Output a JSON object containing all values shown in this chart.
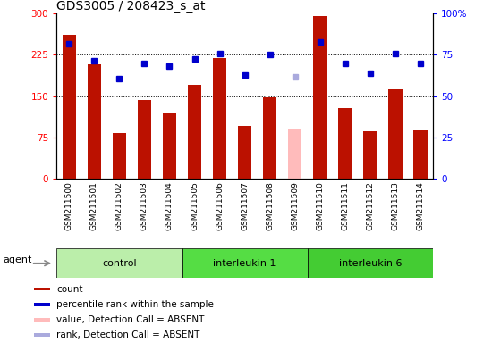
{
  "title": "GDS3005 / 208423_s_at",
  "samples": [
    "GSM211500",
    "GSM211501",
    "GSM211502",
    "GSM211503",
    "GSM211504",
    "GSM211505",
    "GSM211506",
    "GSM211507",
    "GSM211508",
    "GSM211509",
    "GSM211510",
    "GSM211511",
    "GSM211512",
    "GSM211513",
    "GSM211514"
  ],
  "count_values": [
    262,
    208,
    83,
    143,
    118,
    170,
    220,
    95,
    147,
    null,
    295,
    128,
    85,
    162,
    88
  ],
  "count_absent": [
    null,
    null,
    null,
    null,
    null,
    null,
    null,
    null,
    null,
    90,
    null,
    null,
    null,
    null,
    null
  ],
  "rank_values": [
    245,
    215,
    182,
    210,
    205,
    218,
    228,
    188,
    225,
    null,
    248,
    210,
    192,
    228,
    210
  ],
  "rank_absent": [
    null,
    null,
    null,
    null,
    null,
    null,
    null,
    null,
    null,
    185,
    null,
    null,
    null,
    null,
    null
  ],
  "ylim_left": [
    0,
    300
  ],
  "ylim_right": [
    0,
    100
  ],
  "yticks_left": [
    0,
    75,
    150,
    225,
    300
  ],
  "yticks_right": [
    0,
    25,
    50,
    75,
    100
  ],
  "bar_color": "#bb1100",
  "bar_absent_color": "#ffbbbb",
  "rank_color": "#0000cc",
  "rank_absent_color": "#aaaadd",
  "group_defs": [
    {
      "start": 0,
      "end": 5,
      "label": "control",
      "color": "#bbeeaa"
    },
    {
      "start": 5,
      "end": 10,
      "label": "interleukin 1",
      "color": "#55dd44"
    },
    {
      "start": 10,
      "end": 15,
      "label": "interleukin 6",
      "color": "#44cc33"
    }
  ],
  "legend_items": [
    {
      "color": "#bb1100",
      "label": "count"
    },
    {
      "color": "#0000cc",
      "label": "percentile rank within the sample"
    },
    {
      "color": "#ffbbbb",
      "label": "value, Detection Call = ABSENT"
    },
    {
      "color": "#aaaadd",
      "label": "rank, Detection Call = ABSENT"
    }
  ],
  "agent_label": "agent",
  "tick_bg_color": "#cccccc",
  "plot_bg_color": "#ffffff",
  "fig_bg_color": "#ffffff"
}
